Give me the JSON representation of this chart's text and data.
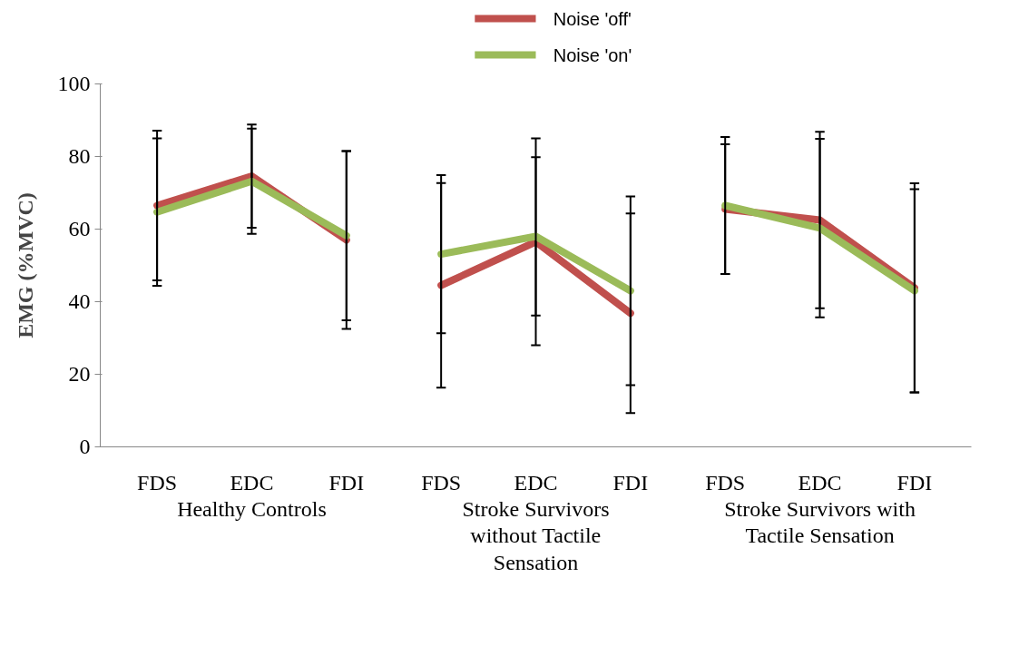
{
  "chart_data": {
    "type": "line",
    "ylabel": "EMG (%MVC)",
    "categories": [
      "FDS",
      "EDC",
      "FDI",
      "FDS",
      "EDC",
      "FDI",
      "FDS",
      "EDC",
      "FDI"
    ],
    "series": [
      {
        "name": "Noise 'off'",
        "color": "#c0504d",
        "values": [
          66.5,
          74.6,
          57.0,
          null,
          null,
          null,
          null,
          null,
          null
        ],
        "errors": [
          20.6,
          14.2,
          24.5,
          null,
          null,
          null,
          null,
          null,
          null
        ]
      },
      {
        "name": "Noise 'on'",
        "color": "#9bbb59",
        "values": [
          64.7,
          73.2,
          58.2,
          null,
          null,
          null,
          null,
          null,
          null
        ],
        "errors": [
          20.3,
          14.5,
          23.3,
          null,
          null,
          null,
          null,
          null,
          null
        ]
      },
      {
        "color": "#c0504d",
        "values": [
          null,
          null,
          null,
          44.5,
          56.5,
          36.8,
          null,
          null,
          null
        ],
        "errors": [
          null,
          null,
          null,
          28.2,
          28.5,
          27.5,
          null,
          null,
          null
        ]
      },
      {
        "color": "#9bbb59",
        "values": [
          null,
          null,
          null,
          53.1,
          58.0,
          43.0,
          null,
          null,
          null
        ],
        "errors": [
          null,
          null,
          null,
          21.8,
          21.8,
          26.0,
          null,
          null,
          null
        ]
      },
      {
        "color": "#c0504d",
        "values": [
          null,
          null,
          null,
          null,
          null,
          null,
          65.5,
          62.5,
          43.8
        ],
        "errors": [
          null,
          null,
          null,
          null,
          null,
          null,
          17.9,
          24.3,
          28.8
        ]
      },
      {
        "color": "#9bbb59",
        "values": [
          null,
          null,
          null,
          null,
          null,
          null,
          66.5,
          60.3,
          43.0
        ],
        "errors": [
          null,
          null,
          null,
          null,
          null,
          null,
          18.9,
          24.6,
          28.0
        ]
      }
    ],
    "ylim": [
      0,
      100
    ],
    "yticks": [
      0,
      20,
      40,
      60,
      80,
      100
    ],
    "grid": false,
    "legend": "top",
    "marker": "none",
    "line_style": "solid",
    "annotations": [
      "Healthy Controls",
      "Stroke Survivors without Tactile Sensation",
      "Stroke Survivors with Tactile Sensation"
    ]
  }
}
